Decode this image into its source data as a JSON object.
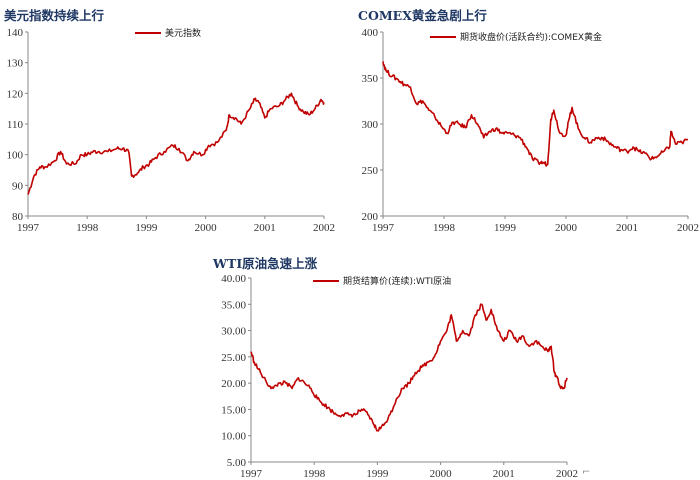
{
  "chart_data": [
    {
      "type": "line",
      "title": "美元指数持续上行",
      "legend": "美元指数",
      "legend_position": "top-center",
      "color": "#c00000",
      "x_tick_labels": [
        "1997",
        "1998",
        "1999",
        "2000",
        "2001",
        "2002"
      ],
      "xlim": [
        1997,
        2002
      ],
      "ylim": [
        80,
        140
      ],
      "y_ticks": [
        80,
        90,
        100,
        110,
        120,
        130,
        140
      ],
      "y_tick_labels": [
        "80",
        "90",
        "100",
        "110",
        "120",
        "130",
        "140"
      ],
      "grid": false,
      "x": [
        1997.0,
        1997.1,
        1997.2,
        1997.3,
        1997.45,
        1997.55,
        1997.65,
        1997.8,
        1997.9,
        1998.0,
        1998.1,
        1998.2,
        1998.35,
        1998.5,
        1998.6,
        1998.7,
        1998.75,
        1998.85,
        1998.95,
        1999.05,
        1999.15,
        1999.3,
        1999.45,
        1999.55,
        1999.7,
        1999.8,
        1999.95,
        2000.05,
        2000.2,
        2000.35,
        2000.4,
        2000.5,
        2000.6,
        2000.75,
        2000.83,
        2000.9,
        2001.0,
        2001.1,
        2001.25,
        2001.35,
        2001.45,
        2001.55,
        2001.65,
        2001.75,
        2001.85,
        2001.95,
        2002.0
      ],
      "y": [
        87,
        93,
        96,
        96,
        98,
        101,
        97,
        97,
        100,
        100,
        101,
        101,
        101,
        102,
        102,
        101,
        93,
        94,
        96,
        97,
        99,
        101,
        103,
        102,
        98,
        101,
        100,
        103,
        104,
        108,
        113,
        112,
        110,
        115,
        118,
        117,
        112,
        115,
        116,
        118,
        120,
        116,
        114,
        113,
        115,
        118,
        117
      ]
    },
    {
      "type": "line",
      "title": "COMEX黄金急剧上行",
      "legend": "期货收盘价(活跃合约):COMEX黄金",
      "legend_position": "top-right",
      "color": "#c00000",
      "x_tick_labels": [
        "1997",
        "1998",
        "1999",
        "2000",
        "2001",
        "2002"
      ],
      "xlim": [
        1997,
        2002
      ],
      "ylim": [
        200,
        400
      ],
      "y_ticks": [
        200,
        250,
        300,
        350,
        400
      ],
      "y_tick_labels": [
        "200",
        "250",
        "300",
        "350",
        "400"
      ],
      "grid": false,
      "x": [
        1997.0,
        1997.05,
        1997.15,
        1997.25,
        1997.35,
        1997.45,
        1997.55,
        1997.65,
        1997.75,
        1997.85,
        1997.95,
        1998.05,
        1998.15,
        1998.25,
        1998.35,
        1998.45,
        1998.55,
        1998.65,
        1998.75,
        1998.85,
        1998.95,
        1999.05,
        1999.15,
        1999.25,
        1999.35,
        1999.45,
        1999.55,
        1999.62,
        1999.7,
        1999.75,
        1999.8,
        1999.9,
        2000.0,
        2000.05,
        2000.1,
        2000.2,
        2000.3,
        2000.4,
        2000.5,
        2000.6,
        2000.7,
        2000.8,
        2000.9,
        2001.0,
        2001.1,
        2001.2,
        2001.3,
        2001.4,
        2001.5,
        2001.6,
        2001.7,
        2001.72,
        2001.8,
        2001.9,
        2002.0
      ],
      "y": [
        368,
        358,
        352,
        348,
        343,
        340,
        322,
        325,
        315,
        308,
        298,
        290,
        302,
        300,
        296,
        310,
        300,
        285,
        292,
        295,
        290,
        290,
        288,
        285,
        275,
        262,
        258,
        258,
        256,
        305,
        315,
        290,
        288,
        305,
        318,
        295,
        285,
        280,
        285,
        285,
        280,
        275,
        272,
        270,
        275,
        270,
        268,
        262,
        265,
        270,
        275,
        292,
        278,
        280,
        283
      ]
    },
    {
      "type": "line",
      "title": "WTI原油急速上涨",
      "legend": "期货结算价(连续):WTI原油",
      "legend_position": "top-center",
      "color": "#c00000",
      "x_tick_labels": [
        "1997",
        "1998",
        "1999",
        "2000",
        "2001",
        "2002"
      ],
      "xlim": [
        1997,
        2002
      ],
      "ylim": [
        5,
        40
      ],
      "y_ticks": [
        5,
        10,
        15,
        20,
        25,
        30,
        35,
        40
      ],
      "y_tick_labels": [
        "5.00",
        "10.00",
        "15.00",
        "20.00",
        "25.00",
        "30.00",
        "35.00",
        "40.00"
      ],
      "grid": false,
      "x": [
        1997.0,
        1997.05,
        1997.15,
        1997.25,
        1997.35,
        1997.45,
        1997.55,
        1997.65,
        1997.75,
        1997.85,
        1997.95,
        1998.05,
        1998.15,
        1998.25,
        1998.35,
        1998.45,
        1998.55,
        1998.65,
        1998.75,
        1998.85,
        1998.95,
        1999.0,
        1999.1,
        1999.2,
        1999.3,
        1999.4,
        1999.5,
        1999.6,
        1999.7,
        1999.8,
        1999.9,
        2000.0,
        2000.1,
        2000.17,
        2000.25,
        2000.35,
        2000.45,
        2000.55,
        2000.65,
        2000.72,
        2000.8,
        2000.9,
        2001.0,
        2001.1,
        2001.2,
        2001.3,
        2001.4,
        2001.5,
        2001.6,
        2001.7,
        2001.75,
        2001.8,
        2001.85,
        2001.9,
        2001.95,
        2002.0
      ],
      "y": [
        26,
        24,
        22,
        20,
        19,
        20,
        20,
        19,
        21,
        20,
        19,
        17,
        16,
        15,
        14,
        14,
        14,
        14,
        15,
        14,
        12,
        11,
        12,
        14,
        17,
        19,
        20,
        22,
        23,
        24,
        25,
        28,
        30,
        33,
        28,
        30,
        29,
        33,
        35,
        32,
        34,
        30,
        28,
        30,
        28,
        29,
        27,
        28,
        27,
        26,
        27,
        22,
        21,
        19,
        19,
        21
      ]
    }
  ],
  "watermark": "⌐"
}
